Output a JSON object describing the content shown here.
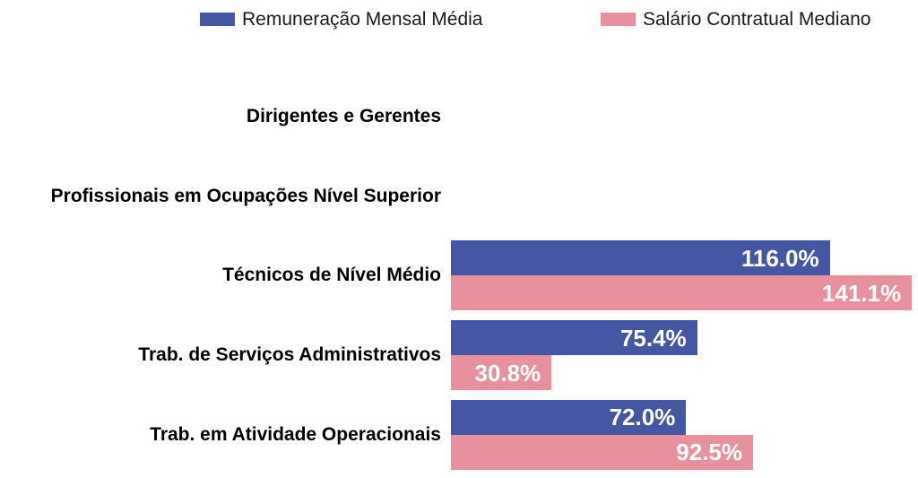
{
  "chart_data": {
    "type": "bar",
    "orientation": "horizontal",
    "title": "",
    "categories": [
      "Dirigentes e Gerentes",
      "Profissionais em Ocupações Nível Superior",
      "Técnicos de Nível Médio",
      "Trab. de Serviços Administrativos",
      "Trab. em Atividade Operacionais"
    ],
    "series": [
      {
        "name": "Remuneração Mensal Média",
        "color": "#4456a4",
        "values": [
          null,
          null,
          116.0,
          75.4,
          72.0
        ]
      },
      {
        "name": "Salário Contratual Mediano",
        "color": "#e8919e",
        "values": [
          null,
          null,
          141.1,
          30.8,
          92.5
        ]
      }
    ],
    "value_suffix": "%",
    "xlim": [
      0,
      143
    ],
    "grid": false,
    "axes_visible": false,
    "legend_position": "top",
    "bar_labels": "inside-end",
    "bar_label_color": "#ffffff",
    "background": "#ffffff"
  }
}
